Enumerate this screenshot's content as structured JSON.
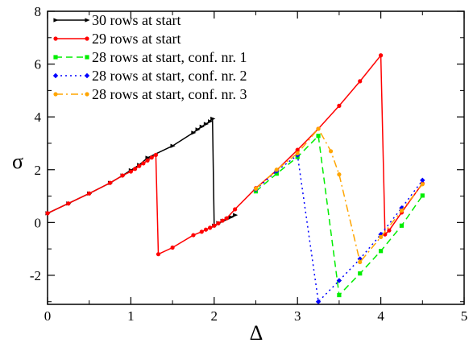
{
  "chart_data": {
    "type": "line",
    "xlabel": "Δ",
    "ylabel": "σ",
    "xlim": [
      0,
      5
    ],
    "ylim": [
      -3.1,
      8
    ],
    "xticks": [
      0,
      1,
      2,
      3,
      4,
      5
    ],
    "yticks": [
      -2,
      0,
      2,
      4,
      6,
      8
    ],
    "x_tick_labels": [
      "0",
      "1",
      "2",
      "3",
      "4",
      "5"
    ],
    "y_tick_labels": [
      "-2",
      "0",
      "2",
      "4",
      "6",
      "8"
    ],
    "grid": false,
    "legend_position": "top-left",
    "series": [
      {
        "name": "30 rows at start",
        "color": "#000000",
        "dash": "solid",
        "marker": "triangle",
        "x": [
          0,
          0.25,
          0.5,
          0.75,
          0.9,
          1.0,
          1.1,
          1.2,
          1.5,
          1.75,
          1.8,
          1.85,
          1.9,
          1.95,
          1.98,
          2.0,
          2.05,
          2.1,
          2.15,
          2.2,
          2.25
        ],
        "y": [
          0.35,
          0.72,
          1.1,
          1.5,
          1.78,
          1.98,
          2.18,
          2.45,
          2.9,
          3.4,
          3.52,
          3.63,
          3.73,
          3.83,
          3.93,
          -0.12,
          -0.02,
          0.06,
          0.13,
          0.2,
          0.28
        ]
      },
      {
        "name": "29 rows at start",
        "color": "#ff0000",
        "dash": "solid",
        "marker": "circle",
        "x": [
          0,
          0.25,
          0.5,
          0.75,
          0.9,
          1.0,
          1.05,
          1.1,
          1.15,
          1.2,
          1.25,
          1.3,
          1.33,
          1.5,
          1.75,
          1.85,
          1.9,
          1.95,
          2.0,
          2.05,
          2.1,
          2.15,
          2.25,
          2.5,
          2.75,
          3.0,
          3.25,
          3.5,
          3.75,
          4.0,
          4.05,
          4.1,
          4.25,
          4.5
        ],
        "y": [
          0.35,
          0.72,
          1.1,
          1.5,
          1.78,
          1.93,
          2.03,
          2.14,
          2.24,
          2.35,
          2.46,
          2.56,
          -1.2,
          -0.95,
          -0.48,
          -0.35,
          -0.27,
          -0.2,
          -0.12,
          -0.03,
          0.07,
          0.16,
          0.5,
          1.3,
          1.98,
          2.75,
          3.55,
          4.42,
          5.35,
          6.33,
          -0.45,
          -0.3,
          0.38,
          1.48
        ]
      },
      {
        "name": "28 rows at start, conf. nr. 1",
        "color": "#00ee00",
        "dash": "dashed",
        "marker": "square",
        "x": [
          2.5,
          2.75,
          3.0,
          3.25,
          3.5,
          3.75,
          4.0,
          4.25,
          4.5
        ],
        "y": [
          1.18,
          1.85,
          2.48,
          3.28,
          -2.75,
          -1.93,
          -1.08,
          -0.12,
          1.02
        ]
      },
      {
        "name": "28 rows at start, conf. nr. 2",
        "color": "#0000ff",
        "dash": "dotted",
        "marker": "diamond",
        "x": [
          2.5,
          2.75,
          3.0,
          3.25,
          3.5,
          3.75,
          4.0,
          4.25,
          4.5
        ],
        "y": [
          1.25,
          1.95,
          2.55,
          -3.0,
          -2.2,
          -1.38,
          -0.45,
          0.55,
          1.6
        ]
      },
      {
        "name": "28 rows at start, conf. nr. 3",
        "color": "#ffa500",
        "dash": "dashdot",
        "marker": "circle",
        "x": [
          2.5,
          2.75,
          3.0,
          3.25,
          3.4,
          3.5,
          3.75,
          4.0,
          4.25,
          4.5
        ],
        "y": [
          1.28,
          2.0,
          2.62,
          3.55,
          2.7,
          1.82,
          -1.5,
          -0.55,
          0.45,
          1.45
        ]
      }
    ]
  }
}
